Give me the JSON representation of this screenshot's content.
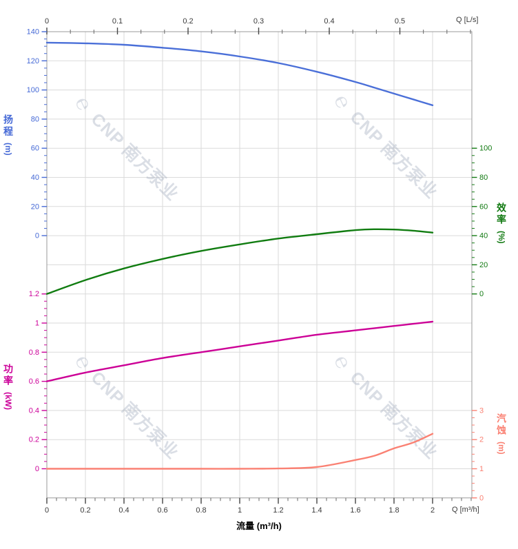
{
  "watermark": {
    "logo": "℮",
    "text": "CNP 南方泵业"
  },
  "labels": {
    "flow_axis_title": "流量 (m³/h)",
    "q_lps": "Q [L/s]",
    "q_m3h": "Q [m³/h]"
  },
  "axes": {
    "head": {
      "name_cn": "扬程",
      "unit": "(m)",
      "color": "#4569d6",
      "ticks": [
        "140",
        "120",
        "100",
        "80",
        "60",
        "40",
        "20",
        "0"
      ]
    },
    "efficiency": {
      "name_cn": "效率",
      "unit": "(%)",
      "color": "#127a12",
      "ticks": [
        "100",
        "80",
        "60",
        "40",
        "20",
        "0"
      ]
    },
    "power": {
      "name_cn": "功率",
      "unit": "(kW)",
      "color": "#cc0099",
      "ticks": [
        "1.2",
        "1",
        "0.8",
        "0.6",
        "0.4",
        "0.2",
        "0"
      ]
    },
    "npsh": {
      "name_cn": "汽蚀",
      "unit": "(m)",
      "color": "#fa8072",
      "ticks": [
        "3",
        "2",
        "1",
        "0"
      ]
    },
    "flow_top": {
      "ticks": [
        "0",
        "0.1",
        "0.2",
        "0.3",
        "0.4",
        "0.5"
      ]
    },
    "flow_bottom": {
      "ticks": [
        "0",
        "0.2",
        "0.4",
        "0.6",
        "0.8",
        "1",
        "1.2",
        "1.4",
        "1.6",
        "1.8",
        "2"
      ]
    }
  },
  "chart_data": {
    "type": "line",
    "title": "",
    "xlabel": "流量 (m³/h)",
    "x_secondary_label": "Q [L/s]",
    "x_secondary_ticks": [
      0,
      0.1,
      0.2,
      0.3,
      0.4,
      0.5
    ],
    "xlim": [
      0,
      2.2
    ],
    "grid": true,
    "x": [
      0,
      0.2,
      0.4,
      0.6,
      0.8,
      1.0,
      1.2,
      1.4,
      1.6,
      1.7,
      1.8,
      1.9,
      2.0
    ],
    "series": [
      {
        "key": "head",
        "name": "扬程",
        "unit": "m",
        "color": "#4a6fd8",
        "ylim": [
          0,
          140
        ],
        "values": [
          132.5,
          132,
          131,
          129,
          126.5,
          123,
          118.5,
          112.5,
          105.5,
          101.5,
          97.5,
          93.5,
          89.5
        ]
      },
      {
        "key": "efficiency",
        "name": "效率",
        "unit": "%",
        "color": "#107c10",
        "ylim": [
          0,
          100
        ],
        "values": [
          0,
          9.5,
          17.5,
          24,
          29.5,
          34,
          38,
          41,
          43.8,
          44.4,
          44.2,
          43.4,
          42.1
        ]
      },
      {
        "key": "power",
        "name": "功率",
        "unit": "kW",
        "color": "#cc0096",
        "ylim": [
          0,
          1.2
        ],
        "values": [
          0.6,
          0.66,
          0.71,
          0.76,
          0.8,
          0.84,
          0.88,
          0.92,
          0.95,
          0.965,
          0.98,
          0.995,
          1.01
        ]
      },
      {
        "key": "npsh",
        "name": "汽蚀",
        "unit": "m",
        "color": "#fa8173",
        "ylim": [
          0,
          3
        ],
        "values": [
          1.0,
          1.0,
          1.0,
          1.0,
          1.0,
          1.0,
          1.01,
          1.06,
          1.3,
          1.45,
          1.7,
          1.9,
          2.2
        ]
      }
    ]
  }
}
